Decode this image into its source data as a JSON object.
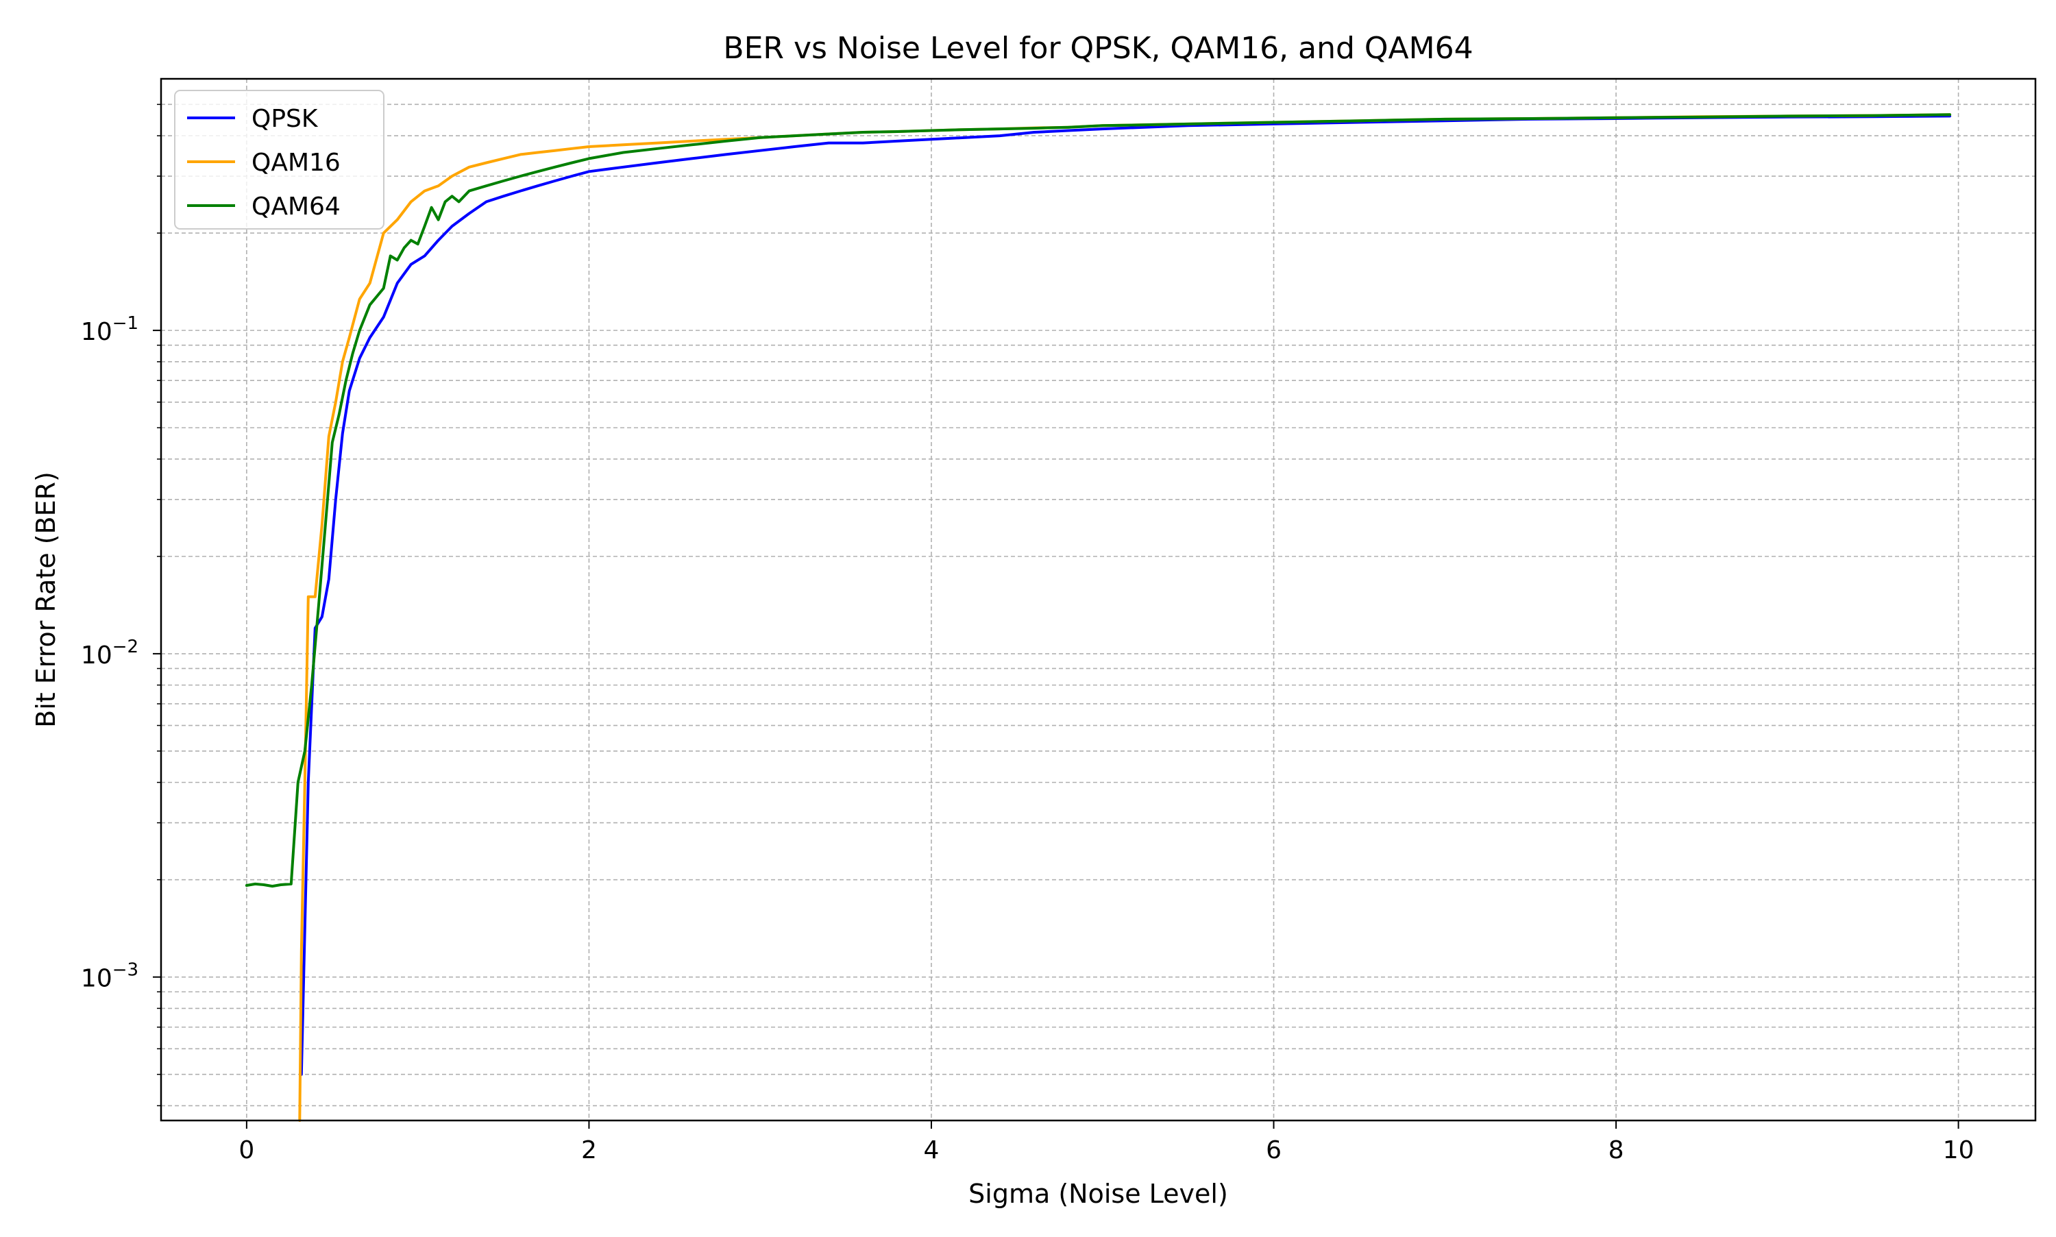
{
  "chart_data": {
    "type": "line",
    "title": "BER vs Noise Level for QPSK, QAM16, and QAM64",
    "xlabel": "Sigma (Noise Level)",
    "ylabel": "Bit Error Rate (BER)",
    "xlim": [
      -0.5,
      10.45
    ],
    "ylim": [
      0.00036,
      0.6
    ],
    "yscale": "log",
    "grid": true,
    "legend_position": "upper left",
    "x_ticks": [
      0,
      2,
      4,
      6,
      8,
      10
    ],
    "x_tick_labels": [
      "0",
      "2",
      "4",
      "6",
      "8",
      "10"
    ],
    "y_ticks": [
      0.001,
      0.01,
      0.1
    ],
    "y_tick_labels": [
      {
        "base": "10",
        "exp": "−3"
      },
      {
        "base": "10",
        "exp": "−2"
      },
      {
        "base": "10",
        "exp": "−1"
      }
    ],
    "series": [
      {
        "name": "QPSK",
        "color": "#0000ff",
        "x": [
          0.32,
          0.36,
          0.4,
          0.44,
          0.48,
          0.52,
          0.56,
          0.6,
          0.66,
          0.72,
          0.8,
          0.88,
          0.96,
          1.04,
          1.12,
          1.2,
          1.3,
          1.4,
          1.5,
          1.6,
          1.7,
          1.8,
          1.9,
          2.0,
          2.2,
          2.4,
          2.6,
          2.8,
          3.0,
          3.2,
          3.4,
          3.6,
          3.8,
          4.0,
          4.2,
          4.4,
          4.6,
          4.8,
          5.0,
          5.5,
          6.0,
          6.5,
          7.0,
          7.5,
          8.0,
          8.5,
          9.0,
          9.5,
          9.95
        ],
        "y": [
          0.0005,
          0.004,
          0.012,
          0.013,
          0.017,
          0.03,
          0.048,
          0.065,
          0.082,
          0.095,
          0.11,
          0.14,
          0.16,
          0.17,
          0.19,
          0.21,
          0.23,
          0.25,
          0.26,
          0.27,
          0.28,
          0.29,
          0.3,
          0.31,
          0.32,
          0.33,
          0.34,
          0.35,
          0.36,
          0.37,
          0.38,
          0.38,
          0.385,
          0.39,
          0.395,
          0.4,
          0.41,
          0.415,
          0.42,
          0.43,
          0.435,
          0.44,
          0.445,
          0.45,
          0.452,
          0.455,
          0.457,
          0.458,
          0.46
        ]
      },
      {
        "name": "QAM16",
        "color": "#ffa500",
        "x": [
          0.31,
          0.32,
          0.34,
          0.36,
          0.4,
          0.44,
          0.48,
          0.52,
          0.56,
          0.6,
          0.66,
          0.72,
          0.8,
          0.88,
          0.96,
          1.04,
          1.12,
          1.2,
          1.3,
          1.4,
          1.5,
          1.6,
          1.7,
          1.8,
          1.9,
          2.0,
          2.2,
          2.4,
          2.6,
          2.8,
          3.0,
          3.2,
          3.4,
          3.6,
          3.8,
          4.0,
          4.2,
          4.4,
          4.6,
          4.8,
          5.0,
          5.5,
          6.0,
          6.5,
          7.0,
          7.5,
          8.0,
          8.5,
          9.0,
          9.5,
          9.95
        ],
        "y": [
          0.00036,
          0.0012,
          0.004,
          0.015,
          0.015,
          0.025,
          0.047,
          0.06,
          0.08,
          0.095,
          0.125,
          0.14,
          0.2,
          0.22,
          0.25,
          0.27,
          0.28,
          0.3,
          0.32,
          0.33,
          0.34,
          0.35,
          0.355,
          0.36,
          0.365,
          0.37,
          0.375,
          0.38,
          0.385,
          0.39,
          0.395,
          0.4,
          0.405,
          0.41,
          0.412,
          0.415,
          0.418,
          0.42,
          0.423,
          0.425,
          0.43,
          0.435,
          0.44,
          0.445,
          0.45,
          0.452,
          0.455,
          0.458,
          0.46,
          0.462,
          0.465
        ]
      },
      {
        "name": "QAM64",
        "color": "#008000",
        "x": [
          0.0,
          0.05,
          0.1,
          0.15,
          0.2,
          0.26,
          0.3,
          0.34,
          0.38,
          0.42,
          0.46,
          0.5,
          0.54,
          0.58,
          0.62,
          0.66,
          0.72,
          0.8,
          0.84,
          0.88,
          0.92,
          0.96,
          1.0,
          1.04,
          1.08,
          1.12,
          1.16,
          1.2,
          1.24,
          1.3,
          1.4,
          1.5,
          1.6,
          1.7,
          1.8,
          1.9,
          2.0,
          2.2,
          2.4,
          2.6,
          2.8,
          3.0,
          3.2,
          3.4,
          3.6,
          3.8,
          4.0,
          4.2,
          4.4,
          4.6,
          4.8,
          5.0,
          5.5,
          6.0,
          6.5,
          7.0,
          7.5,
          8.0,
          8.5,
          9.0,
          9.5,
          9.95
        ],
        "y": [
          0.00192,
          0.00194,
          0.00193,
          0.00191,
          0.00193,
          0.00194,
          0.004,
          0.005,
          0.008,
          0.014,
          0.025,
          0.045,
          0.055,
          0.07,
          0.085,
          0.1,
          0.12,
          0.135,
          0.17,
          0.165,
          0.18,
          0.19,
          0.185,
          0.21,
          0.24,
          0.22,
          0.25,
          0.26,
          0.25,
          0.27,
          0.28,
          0.29,
          0.3,
          0.31,
          0.32,
          0.33,
          0.34,
          0.355,
          0.365,
          0.375,
          0.385,
          0.395,
          0.4,
          0.405,
          0.41,
          0.412,
          0.415,
          0.418,
          0.42,
          0.422,
          0.425,
          0.43,
          0.435,
          0.44,
          0.445,
          0.45,
          0.452,
          0.455,
          0.457,
          0.46,
          0.462,
          0.465
        ]
      }
    ]
  }
}
